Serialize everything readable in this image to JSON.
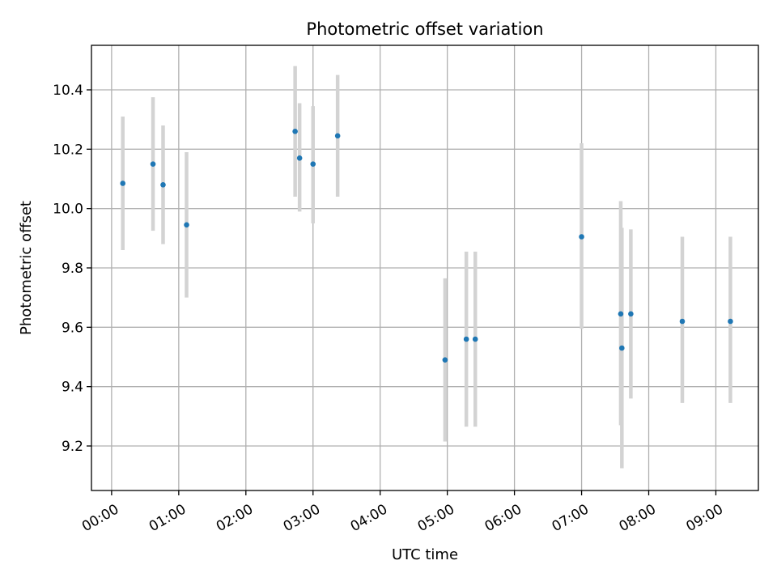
{
  "chart_data": {
    "type": "scatter",
    "title": "Photometric offset variation",
    "xlabel": "UTC time",
    "ylabel": "Photometric offset",
    "x_ticks": [
      "00:00",
      "01:00",
      "02:00",
      "03:00",
      "04:00",
      "05:00",
      "06:00",
      "07:00",
      "08:00",
      "09:00"
    ],
    "y_ticks": [
      "9.2",
      "9.4",
      "9.6",
      "9.8",
      "10.0",
      "10.2",
      "10.4"
    ],
    "xlim": [
      "23:42",
      "09:38"
    ],
    "ylim": [
      9.05,
      10.55
    ],
    "grid": true,
    "series": [
      {
        "marker_color": "#1f77b4",
        "errorbar_color": "#d3d3d3",
        "points": [
          {
            "x": "00:10",
            "y": 10.085,
            "y_low": 9.86,
            "y_high": 10.31
          },
          {
            "x": "00:37",
            "y": 10.15,
            "y_low": 9.925,
            "y_high": 10.375
          },
          {
            "x": "00:46",
            "y": 10.08,
            "y_low": 9.88,
            "y_high": 10.28
          },
          {
            "x": "01:07",
            "y": 9.945,
            "y_low": 9.7,
            "y_high": 10.19
          },
          {
            "x": "02:44",
            "y": 10.26,
            "y_low": 10.04,
            "y_high": 10.48
          },
          {
            "x": "02:48",
            "y": 10.17,
            "y_low": 9.99,
            "y_high": 10.355
          },
          {
            "x": "03:00",
            "y": 10.15,
            "y_low": 9.95,
            "y_high": 10.345
          },
          {
            "x": "03:22",
            "y": 10.245,
            "y_low": 10.04,
            "y_high": 10.45
          },
          {
            "x": "04:58",
            "y": 9.49,
            "y_low": 9.215,
            "y_high": 9.765
          },
          {
            "x": "05:17",
            "y": 9.56,
            "y_low": 9.265,
            "y_high": 9.855
          },
          {
            "x": "05:25",
            "y": 9.56,
            "y_low": 9.265,
            "y_high": 9.855
          },
          {
            "x": "07:00",
            "y": 9.905,
            "y_low": 9.595,
            "y_high": 10.22
          },
          {
            "x": "07:35",
            "y": 9.645,
            "y_low": 9.27,
            "y_high": 10.025
          },
          {
            "x": "07:36",
            "y": 9.53,
            "y_low": 9.125,
            "y_high": 9.935
          },
          {
            "x": "07:44",
            "y": 9.645,
            "y_low": 9.36,
            "y_high": 9.93
          },
          {
            "x": "08:30",
            "y": 9.62,
            "y_low": 9.345,
            "y_high": 9.905
          },
          {
            "x": "09:13",
            "y": 9.62,
            "y_low": 9.345,
            "y_high": 9.905
          }
        ]
      }
    ]
  }
}
